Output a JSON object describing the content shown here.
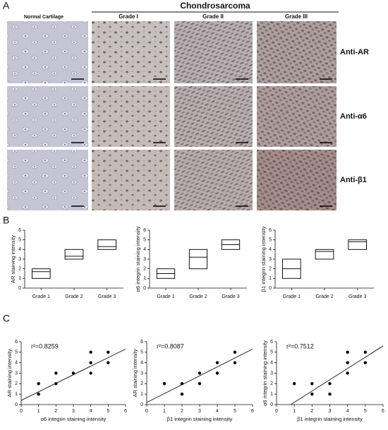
{
  "panel_labels": [
    "A",
    "B",
    "C"
  ],
  "panel_a": {
    "group": "Chondrosarcoma",
    "columns": [
      "Normal Cartilage",
      "Grade I",
      "Grade II",
      "Grade III"
    ],
    "rows": [
      "Anti-AR",
      "Anti-α6",
      "Anti-β1"
    ]
  },
  "chart_data": [
    {
      "type": "box",
      "ylabel": "AR staining intensity",
      "categories": [
        "Grade 1",
        "Grade 2",
        "Grade 3"
      ],
      "low": [
        1,
        3,
        4
      ],
      "median": [
        1.7,
        3.3,
        4.3
      ],
      "high": [
        2,
        4,
        5
      ],
      "ylim": [
        0,
        6
      ],
      "yticks": [
        0,
        1,
        2,
        3,
        4,
        5,
        6
      ]
    },
    {
      "type": "box",
      "ylabel": "α6 integrin staining intensity",
      "categories": [
        "Grade 1",
        "Grade 2",
        "Grade 3"
      ],
      "low": [
        1,
        2,
        4
      ],
      "median": [
        1.5,
        3.2,
        4.5
      ],
      "high": [
        2,
        4,
        5
      ],
      "ylim": [
        0,
        6
      ],
      "yticks": [
        0,
        1,
        2,
        3,
        4,
        5,
        6
      ]
    },
    {
      "type": "box",
      "ylabel": "β1 integrin staining intensity",
      "categories": [
        "Grade 1",
        "Grade 2",
        "Grade 3"
      ],
      "low": [
        1,
        3,
        4
      ],
      "median": [
        2,
        3.8,
        4.8
      ],
      "high": [
        3,
        4,
        5
      ],
      "ylim": [
        0,
        6
      ],
      "yticks": [
        0,
        1,
        2,
        3,
        4,
        5,
        6
      ]
    },
    {
      "type": "scatter",
      "annotation": "r²=0.8259",
      "xlabel": "α6 integrin staining intensity",
      "ylabel": "AR staining intensity",
      "x": [
        1,
        1,
        2,
        2,
        3,
        4,
        4,
        4,
        5,
        5
      ],
      "y": [
        1,
        2,
        2,
        3,
        3,
        3,
        4,
        5,
        4,
        5
      ],
      "fit": {
        "x": [
          0,
          6
        ],
        "y": [
          0.4,
          5.3
        ]
      },
      "xlim": [
        0,
        6
      ],
      "ylim": [
        0,
        6
      ],
      "xticks": [
        0,
        1,
        2,
        3,
        4,
        5,
        6
      ],
      "yticks": [
        0,
        1,
        2,
        3,
        4,
        5,
        6
      ]
    },
    {
      "type": "scatter",
      "annotation": "r²=0.8087",
      "xlabel": "β1 integrin staining intensity",
      "ylabel": "AR staining intensity",
      "x": [
        1,
        2,
        2,
        3,
        3,
        4,
        4,
        5,
        5
      ],
      "y": [
        2,
        1,
        2,
        2,
        3,
        3,
        4,
        4,
        5
      ],
      "fit": {
        "x": [
          0,
          6
        ],
        "y": [
          0.2,
          5.3
        ]
      },
      "xlim": [
        0,
        6
      ],
      "ylim": [
        0,
        6
      ],
      "xticks": [
        0,
        1,
        2,
        3,
        4,
        5,
        6
      ],
      "yticks": [
        0,
        1,
        2,
        3,
        4,
        5,
        6
      ]
    },
    {
      "type": "scatter",
      "annotation": "r²=0.7512",
      "xlabel": "β1 integrin staining intensity",
      "ylabel": "α6 integrin staining intensity",
      "x": [
        1,
        2,
        2,
        3,
        3,
        4,
        4,
        4,
        5,
        5
      ],
      "y": [
        2,
        1,
        2,
        1,
        2,
        3,
        4,
        5,
        4,
        5
      ],
      "fit": {
        "x": [
          0.8,
          6
        ],
        "y": [
          0,
          5.6
        ]
      },
      "xlim": [
        0,
        6
      ],
      "ylim": [
        0,
        6
      ],
      "xticks": [
        0,
        1,
        2,
        3,
        4,
        5,
        6
      ],
      "yticks": [
        0,
        1,
        2,
        3,
        4,
        5,
        6
      ]
    }
  ]
}
